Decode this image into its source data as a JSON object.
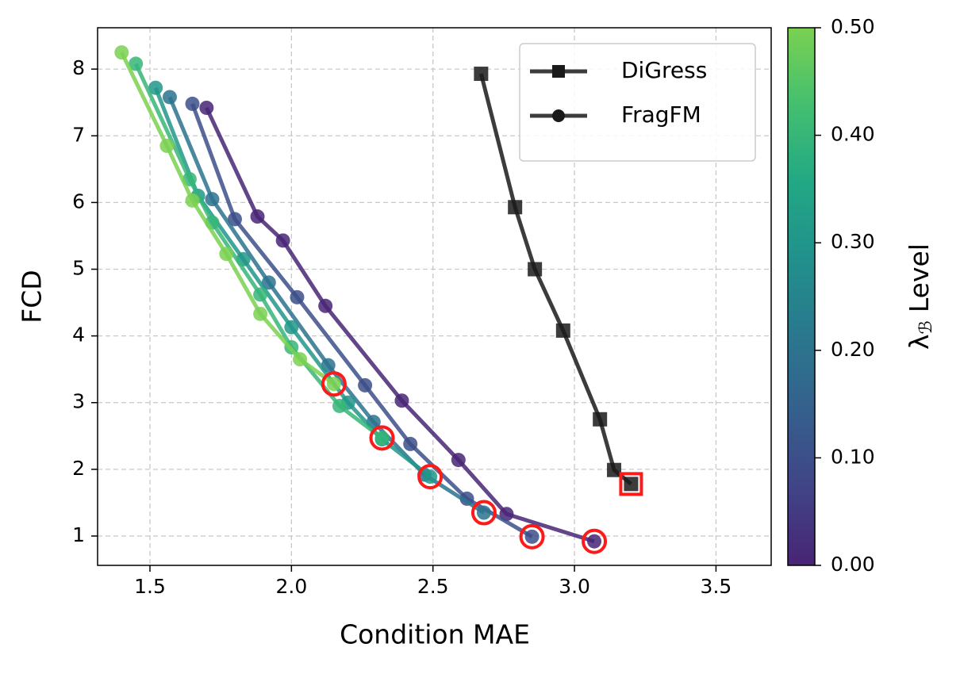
{
  "chart_data": {
    "type": "line",
    "xlabel": "Condition MAE",
    "ylabel": "FCD",
    "xlim": [
      1.315,
      3.695
    ],
    "ylim": [
      0.56,
      8.62
    ],
    "xticks": [
      1.5,
      {
        "value": 2,
        "label": "2.0"
      },
      2.5,
      {
        "value": 3,
        "label": "3.0"
      },
      3.5
    ],
    "yticks": [
      1,
      2,
      3,
      4,
      5,
      6,
      7,
      8
    ],
    "grid": true,
    "legend": "upper right",
    "highlight_color": "#ff1a1a",
    "colorbar": {
      "label_symbol": "λ",
      "label_subscript": "ℬ",
      "label_text": "Level",
      "lim": [
        0,
        0.5
      ],
      "ticks": [
        {
          "value": 0,
          "label": "0.00"
        },
        {
          "value": 0.1,
          "label": "0.10"
        },
        {
          "value": 0.2,
          "label": "0.20"
        },
        {
          "value": 0.3,
          "label": "0.30"
        },
        {
          "value": 0.4,
          "label": "0.40"
        },
        {
          "value": 0.5,
          "label": "0.50"
        }
      ],
      "colormap": [
        "#482475",
        "#414487",
        "#355f8d",
        "#2a788e",
        "#21918c",
        "#22a884",
        "#44bf70",
        "#7ad151"
      ]
    },
    "series": [
      {
        "name": "DiGress",
        "color": "#1a1a1a",
        "marker": "square",
        "x": [
          2.67,
          2.79,
          2.86,
          2.96,
          3.09,
          3.14,
          3.2
        ],
        "values": [
          7.93,
          5.93,
          5.0,
          4.08,
          2.75,
          1.99,
          1.78
        ]
      },
      {
        "name": "FragFM",
        "color": "#1a1a1a",
        "marker": "circle",
        "lines": [
          {
            "lambda": 0,
            "x": [
              1.7,
              1.88,
              1.97,
              2.12,
              2.39,
              2.59,
              2.76,
              3.07
            ],
            "values": [
              7.42,
              5.79,
              5.43,
              4.45,
              3.03,
              2.14,
              1.33,
              0.92
            ]
          },
          {
            "lambda": 0.1,
            "x": [
              1.65,
              1.8,
              2.02,
              2.26,
              2.42,
              2.62,
              2.85
            ],
            "values": [
              7.48,
              5.75,
              4.58,
              3.26,
              2.38,
              1.56,
              0.99
            ]
          },
          {
            "lambda": 0.2,
            "x": [
              1.57,
              1.72,
              1.92,
              2.13,
              2.29,
              2.47,
              2.68
            ],
            "values": [
              7.58,
              6.05,
              4.8,
              3.56,
              2.71,
              1.92,
              1.35
            ]
          },
          {
            "lambda": 0.3,
            "x": [
              1.52,
              1.67,
              1.83,
              2.0,
              2.2,
              2.32,
              2.49
            ],
            "values": [
              7.72,
              6.1,
              5.15,
              4.13,
              3.0,
              2.45,
              1.89
            ]
          },
          {
            "lambda": 0.4,
            "x": [
              1.45,
              1.64,
              1.72,
              1.89,
              2.0,
              2.17,
              2.32
            ],
            "values": [
              8.08,
              6.35,
              5.7,
              4.62,
              3.83,
              2.95,
              2.47
            ]
          },
          {
            "lambda": 0.5,
            "x": [
              1.4,
              1.56,
              1.65,
              1.77,
              1.89,
              2.03,
              2.15
            ],
            "values": [
              8.25,
              6.85,
              6.03,
              5.23,
              4.33,
              3.65,
              3.28
            ]
          }
        ]
      }
    ]
  }
}
